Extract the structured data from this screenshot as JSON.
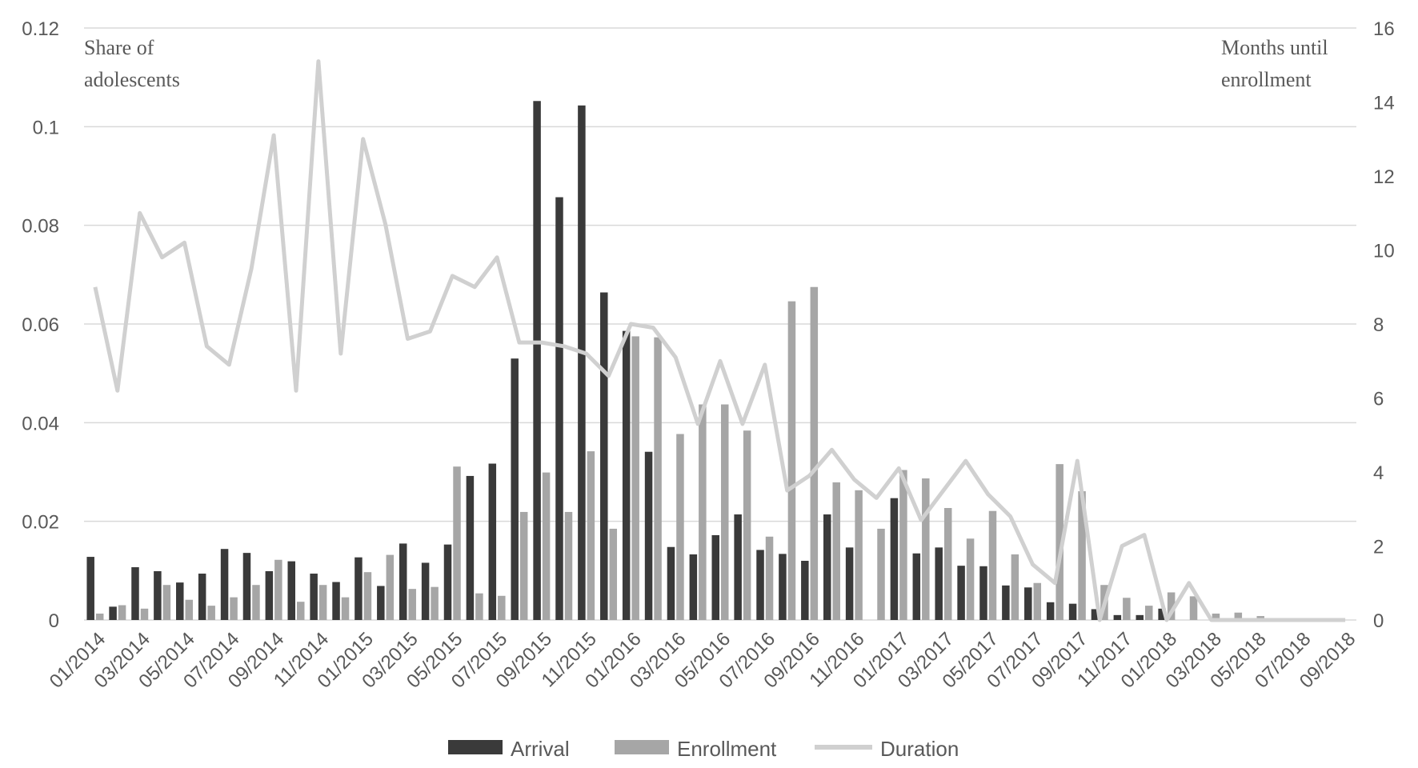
{
  "chart_data": {
    "type": "bar",
    "categories": [
      "01/2014",
      "02/2014",
      "03/2014",
      "04/2014",
      "05/2014",
      "06/2014",
      "07/2014",
      "08/2014",
      "09/2014",
      "10/2014",
      "11/2014",
      "12/2014",
      "01/2015",
      "02/2015",
      "03/2015",
      "04/2015",
      "05/2015",
      "06/2015",
      "07/2015",
      "08/2015",
      "09/2015",
      "10/2015",
      "11/2015",
      "12/2015",
      "01/2016",
      "02/2016",
      "03/2016",
      "04/2016",
      "05/2016",
      "06/2016",
      "07/2016",
      "08/2016",
      "09/2016",
      "10/2016",
      "11/2016",
      "12/2016",
      "01/2017",
      "02/2017",
      "03/2017",
      "04/2017",
      "05/2017",
      "06/2017",
      "07/2017",
      "08/2017",
      "09/2017",
      "10/2017",
      "11/2017",
      "12/2017",
      "01/2018",
      "02/2018",
      "03/2018",
      "04/2018",
      "05/2018",
      "06/2018",
      "07/2018",
      "08/2018",
      "09/2018"
    ],
    "xtick_labels": [
      "01/2014",
      "03/2014",
      "05/2014",
      "07/2014",
      "09/2014",
      "11/2014",
      "01/2015",
      "03/2015",
      "05/2015",
      "07/2015",
      "09/2015",
      "11/2015",
      "01/2016",
      "03/2016",
      "05/2016",
      "07/2016",
      "09/2016",
      "11/2016",
      "01/2017",
      "03/2017",
      "05/2017",
      "07/2017",
      "09/2017",
      "11/2017",
      "01/2018",
      "03/2018",
      "05/2018",
      "07/2018",
      "09/2018"
    ],
    "series": [
      {
        "name": "Arrival",
        "kind": "bar",
        "axis": "left",
        "color": "#3a3a3a",
        "values": [
          0.0128,
          0.0027,
          0.0107,
          0.0099,
          0.0076,
          0.0094,
          0.0144,
          0.0136,
          0.0099,
          0.0119,
          0.0094,
          0.0077,
          0.0127,
          0.0069,
          0.0155,
          0.0116,
          0.0153,
          0.0292,
          0.0317,
          0.053,
          0.1052,
          0.0857,
          0.1043,
          0.0664,
          0.0586,
          0.0341,
          0.0148,
          0.0133,
          0.0172,
          0.0214,
          0.0142,
          0.0134,
          0.012,
          0.0214,
          0.0147,
          0.0,
          0.0247,
          0.0135,
          0.0147,
          0.011,
          0.0109,
          0.007,
          0.0066,
          0.0036,
          0.0033,
          0.0022,
          0.001,
          0.001,
          0.0023,
          0,
          0,
          0,
          0,
          0,
          0,
          0,
          0
        ]
      },
      {
        "name": "Enrollment",
        "kind": "bar",
        "axis": "left",
        "color": "#a6a6a6",
        "values": [
          0.0013,
          0.003,
          0.0023,
          0.0071,
          0.0041,
          0.0029,
          0.0046,
          0.0071,
          0.0122,
          0.0037,
          0.0071,
          0.0046,
          0.0097,
          0.0132,
          0.0063,
          0.0067,
          0.0311,
          0.0054,
          0.0049,
          0.0219,
          0.0299,
          0.0219,
          0.0342,
          0.0185,
          0.0575,
          0.0573,
          0.0377,
          0.0437,
          0.0437,
          0.0384,
          0.0169,
          0.0646,
          0.0675,
          0.0279,
          0.0263,
          0.0185,
          0.0304,
          0.0287,
          0.0227,
          0.0165,
          0.0221,
          0.0133,
          0.0075,
          0.0316,
          0.0261,
          0.0071,
          0.0045,
          0.0029,
          0.0056,
          0.0048,
          0.0013,
          0.0015,
          0.0008,
          0,
          0,
          0,
          0
        ]
      },
      {
        "name": "Duration",
        "kind": "line",
        "axis": "right",
        "color": "#d0d0d0",
        "values": [
          9.0,
          6.2,
          11.0,
          9.8,
          10.2,
          7.4,
          6.9,
          9.5,
          13.1,
          6.2,
          15.1,
          7.2,
          13.0,
          10.7,
          7.6,
          7.8,
          9.3,
          9.0,
          9.8,
          7.5,
          7.5,
          7.4,
          7.2,
          6.6,
          8.0,
          7.9,
          7.1,
          5.3,
          7.0,
          5.3,
          6.9,
          3.5,
          3.9,
          4.6,
          3.8,
          3.3,
          4.1,
          2.7,
          3.5,
          4.3,
          3.4,
          2.8,
          1.5,
          1.0,
          4.3,
          0.0,
          2.0,
          2.3,
          0.0,
          1.0,
          0.0,
          0.0,
          0.0,
          0.0,
          0.0,
          0.0,
          0.0
        ]
      }
    ],
    "left_axis": {
      "title_line1": "Share of",
      "title_line2": "adolescents",
      "ylim": [
        0,
        0.12
      ],
      "ticks": [
        "0",
        "0.02",
        "0.04",
        "0.06",
        "0.08",
        "0.1",
        "0.12"
      ]
    },
    "right_axis": {
      "title_line1": "Months until",
      "title_line2": "enrollment",
      "ylim": [
        0,
        16
      ],
      "ticks": [
        "0",
        "2",
        "4",
        "6",
        "8",
        "10",
        "12",
        "14",
        "16"
      ]
    },
    "grid": true,
    "legend_position": "bottom-center"
  }
}
